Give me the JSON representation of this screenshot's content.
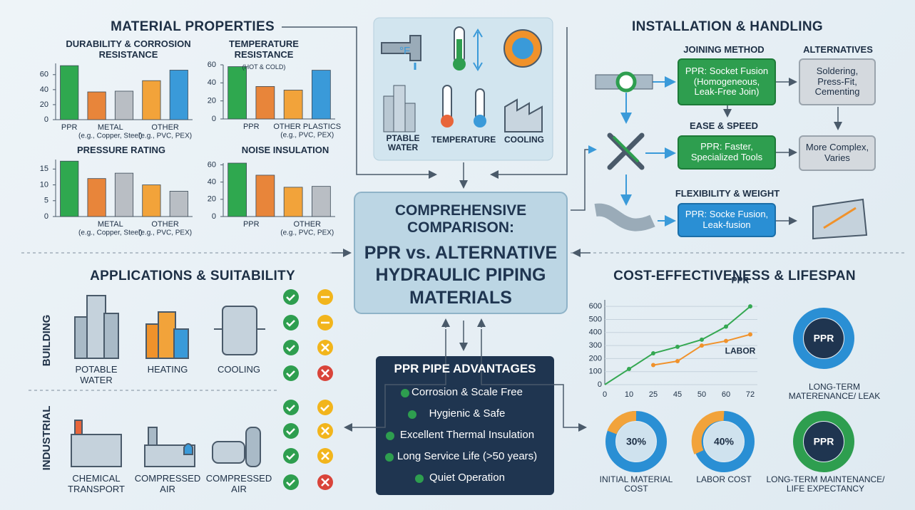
{
  "sections": {
    "material": "MATERIAL PROPERTIES",
    "installation": "INSTALLATION & HANDLING",
    "applications": "APPLICATIONS & SUITABILITY",
    "cost": "COST-EFFECTIVENESS & LIFESPAN"
  },
  "chart_data": [
    {
      "type": "bar",
      "title": "DURABILITY & CORROSION RESISTANCE",
      "categories": [
        "PPR",
        "METAL",
        null,
        "OTHER",
        null
      ],
      "category_notes": [
        null,
        "(e.g., Copper, Steel)",
        null,
        "(e.g., PVC, PEX)",
        null
      ],
      "values": [
        72,
        37,
        38,
        52,
        66
      ],
      "colors": [
        "#2fa84f",
        "#e8853a",
        "#b9bec4",
        "#f2a33a",
        "#3a9ad9"
      ],
      "ylim": [
        0,
        75
      ],
      "yticks": [
        0,
        20,
        40,
        60
      ]
    },
    {
      "type": "bar",
      "title": "TEMPERATURE RESISTANCE",
      "subtitle": "(HOT & COLD)",
      "categories": [
        "PPR",
        null,
        "OTHER PLASTICS",
        null
      ],
      "category_notes": [
        null,
        null,
        "(e.g., PVC, PEX)",
        null
      ],
      "values": [
        58,
        36,
        32,
        54
      ],
      "colors": [
        "#2fa84f",
        "#e8853a",
        "#f2a33a",
        "#3a9ad9"
      ],
      "ylim": [
        0,
        60
      ],
      "yticks": [
        0,
        20,
        40,
        60
      ]
    },
    {
      "type": "bar",
      "title": "PRESSURE RATING",
      "categories": [
        null,
        "METAL",
        null,
        "OTHER",
        null
      ],
      "category_notes": [
        null,
        "(e.g., Copper, Steel)",
        null,
        "(e.g., PVC, PEX)",
        null
      ],
      "values": [
        17.5,
        12,
        13.7,
        10,
        8
      ],
      "colors": [
        "#2fa84f",
        "#e8853a",
        "#b9bec4",
        "#f2a33a",
        "#b9bec4"
      ],
      "ylim": [
        0,
        18
      ],
      "yticks": [
        0,
        5,
        10,
        15
      ]
    },
    {
      "type": "bar",
      "title": "NOISE INSULATION",
      "categories": [
        "PPR",
        null,
        "OTHER",
        null
      ],
      "category_notes": [
        null,
        null,
        "(e.g., PVC, PEX)",
        null
      ],
      "values": [
        62,
        48,
        34,
        35
      ],
      "colors": [
        "#2fa84f",
        "#e8853a",
        "#f2a33a",
        "#b9bec4"
      ],
      "ylim": [
        0,
        62
      ],
      "yticks": [
        0,
        20,
        40,
        60
      ]
    },
    {
      "type": "line",
      "categories": [
        "0",
        "10",
        "25",
        "45",
        "50",
        "60",
        "72"
      ],
      "series": [
        {
          "name": "PPR",
          "color": "#35a852",
          "values": [
            0,
            120,
            240,
            290,
            345,
            445,
            600
          ]
        },
        {
          "name": "LABOR",
          "color": "#f0922b",
          "values": [
            null,
            null,
            150,
            180,
            300,
            335,
            385
          ]
        }
      ],
      "ylim": [
        0,
        650
      ],
      "yticks": [
        0,
        100,
        200,
        300,
        400,
        500,
        600
      ]
    }
  ],
  "top_icons": {
    "unit": "°F",
    "labels": [
      "PTABLE WATER",
      "TEMPERATURE",
      "COOLING"
    ]
  },
  "center": {
    "title_1": "COMPREHENSIVE COMPARISON:",
    "title_2": "PPR vs. ALTERNATIVE HYDRAULIC PIPING MATERIALS"
  },
  "advantages": {
    "title": "PPR PIPE ADVANTAGES",
    "items": [
      "Corrosion & Scale Free",
      "Hygienic & Safe",
      "Excellent Thermal Insulation",
      "Long Service Life (>50 years)",
      "Quiet Operation"
    ]
  },
  "installation": {
    "headers": [
      "JOINING METHOD",
      "ALTERNATIVES",
      "EASE & SPEED",
      "FLEXIBILITY & WEIGHT"
    ],
    "boxes": [
      "PPR: Socket Fusion (Homogeneous, Leak-Free Join)",
      "Soldering, Press-Fit, Cementing",
      "PPR: Faster, Specialized Tools",
      "More Complex, Varies",
      "PPR: Socke Fusion, Leak-fusion"
    ]
  },
  "applications": {
    "groups": [
      "BUILDING",
      "INDUSTRIAL"
    ],
    "items": [
      "POTABLE WATER",
      "HEATING",
      "COOLING",
      "CHEMICAL TRANSPORT",
      "COMPRESSED AIR",
      "COMPRESSED AIR"
    ]
  },
  "lifespan": {
    "badge": "PPR",
    "caption": "LONG-TERM MATERENANCE/ LEAK",
    "donuts": [
      {
        "label": "30%",
        "caption": "INITIAL MATERIAL COST"
      },
      {
        "label": "40%",
        "caption": "LABOR COST"
      },
      {
        "label": "PPR",
        "caption": "LONG-TERM MAINTENANCE/ LIFE EXPECTANCY"
      }
    ]
  }
}
